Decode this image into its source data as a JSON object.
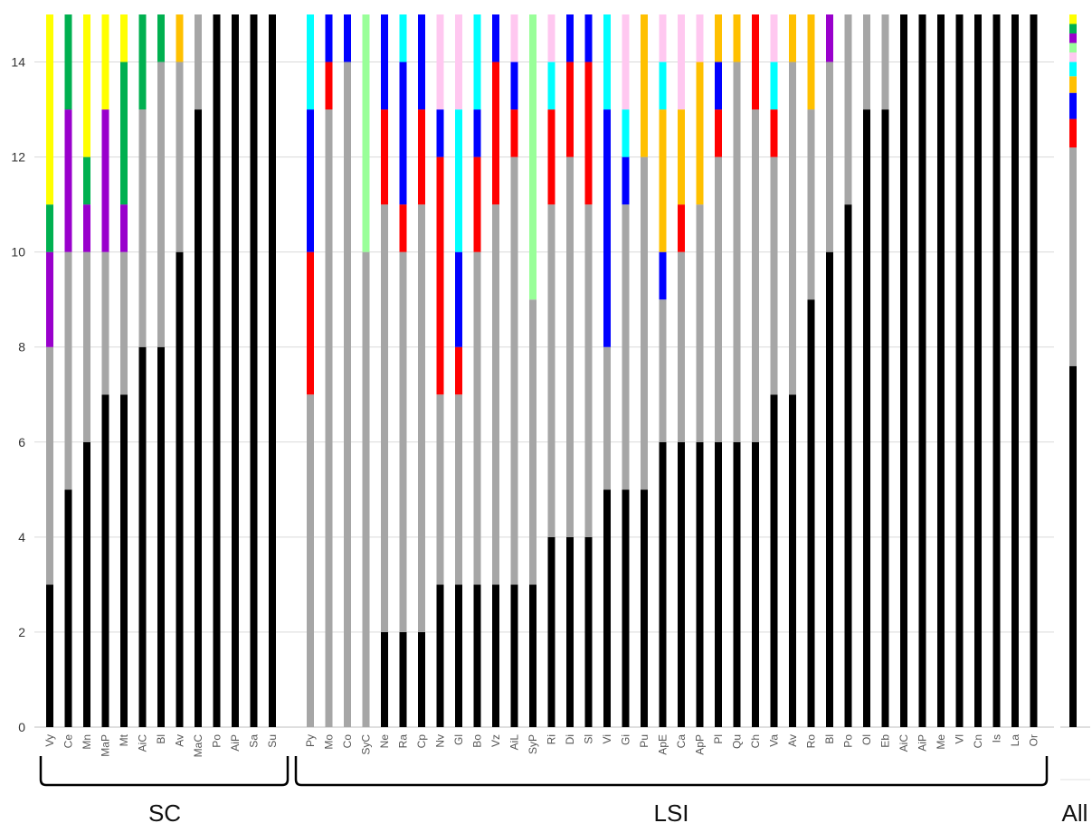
{
  "chart_data": {
    "type": "bar",
    "stacked": true,
    "grid": true,
    "ylim": [
      0,
      15
    ],
    "y_ticks": [
      "0",
      "2",
      "4",
      "6",
      "8",
      "10",
      "12",
      "14"
    ],
    "colors": {
      "black": "#000000",
      "gray": "#a6a6a6",
      "red": "#ff0000",
      "blue": "#0000ff",
      "cyan": "#00ffff",
      "pink": "#ffc8f0",
      "orange": "#ffc000",
      "purple": "#9900cc",
      "green": "#00b050",
      "yellow": "#ffff00",
      "lightgreen": "#99ff99"
    },
    "groups": [
      {
        "label": "SC",
        "bars": [
          {
            "label": "Vy",
            "segments": [
              [
                "black",
                3
              ],
              [
                "gray",
                5
              ],
              [
                "purple",
                2
              ],
              [
                "green",
                1
              ],
              [
                "yellow",
                4
              ]
            ]
          },
          {
            "label": "Ce",
            "segments": [
              [
                "black",
                5
              ],
              [
                "gray",
                5
              ],
              [
                "purple",
                3
              ],
              [
                "green",
                2
              ]
            ]
          },
          {
            "label": "Mn",
            "segments": [
              [
                "black",
                6
              ],
              [
                "gray",
                4
              ],
              [
                "purple",
                1
              ],
              [
                "green",
                1
              ],
              [
                "yellow",
                3
              ]
            ]
          },
          {
            "label": "MaP",
            "segments": [
              [
                "black",
                7
              ],
              [
                "gray",
                3
              ],
              [
                "purple",
                3
              ],
              [
                "yellow",
                2
              ]
            ]
          },
          {
            "label": "Mt",
            "segments": [
              [
                "black",
                7
              ],
              [
                "gray",
                3
              ],
              [
                "purple",
                1
              ],
              [
                "green",
                3
              ],
              [
                "yellow",
                1
              ]
            ]
          },
          {
            "label": "AiC",
            "segments": [
              [
                "black",
                8
              ],
              [
                "gray",
                5
              ],
              [
                "green",
                2
              ]
            ]
          },
          {
            "label": "Bl",
            "segments": [
              [
                "black",
                8
              ],
              [
                "gray",
                6
              ],
              [
                "green",
                1
              ]
            ]
          },
          {
            "label": "Av",
            "segments": [
              [
                "black",
                10
              ],
              [
                "gray",
                4
              ],
              [
                "orange",
                1
              ]
            ]
          },
          {
            "label": "MaC",
            "segments": [
              [
                "black",
                13
              ],
              [
                "gray",
                2
              ]
            ]
          },
          {
            "label": "Po",
            "segments": [
              [
                "black",
                15
              ]
            ]
          },
          {
            "label": "AiP",
            "segments": [
              [
                "black",
                15
              ]
            ]
          },
          {
            "label": "Sa",
            "segments": [
              [
                "black",
                15
              ]
            ]
          },
          {
            "label": "Su",
            "segments": [
              [
                "black",
                15
              ]
            ]
          }
        ]
      },
      {
        "label": "LSI",
        "bars": [
          {
            "label": "Py",
            "segments": [
              [
                "gray",
                7
              ],
              [
                "red",
                3
              ],
              [
                "blue",
                3
              ],
              [
                "cyan",
                2
              ]
            ]
          },
          {
            "label": "Mo",
            "segments": [
              [
                "gray",
                13
              ],
              [
                "red",
                1
              ],
              [
                "blue",
                1
              ]
            ]
          },
          {
            "label": "Co",
            "segments": [
              [
                "gray",
                14
              ],
              [
                "blue",
                1
              ]
            ]
          },
          {
            "label": "SyC",
            "segments": [
              [
                "gray",
                10
              ],
              [
                "lightgreen",
                5
              ]
            ]
          },
          {
            "label": "Ne",
            "segments": [
              [
                "black",
                2
              ],
              [
                "gray",
                9
              ],
              [
                "red",
                2
              ],
              [
                "blue",
                2
              ]
            ]
          },
          {
            "label": "Ra",
            "segments": [
              [
                "black",
                2
              ],
              [
                "gray",
                8
              ],
              [
                "red",
                1
              ],
              [
                "blue",
                3
              ],
              [
                "cyan",
                1
              ]
            ]
          },
          {
            "label": "Cp",
            "segments": [
              [
                "black",
                2
              ],
              [
                "gray",
                9
              ],
              [
                "red",
                2
              ],
              [
                "blue",
                2
              ]
            ]
          },
          {
            "label": "Nv",
            "segments": [
              [
                "black",
                3
              ],
              [
                "gray",
                4
              ],
              [
                "red",
                5
              ],
              [
                "blue",
                1
              ],
              [
                "pink",
                2
              ]
            ]
          },
          {
            "label": "Gl",
            "segments": [
              [
                "black",
                3
              ],
              [
                "gray",
                4
              ],
              [
                "red",
                1
              ],
              [
                "blue",
                2
              ],
              [
                "cyan",
                3
              ],
              [
                "pink",
                2
              ]
            ]
          },
          {
            "label": "Bo",
            "segments": [
              [
                "black",
                3
              ],
              [
                "gray",
                7
              ],
              [
                "red",
                2
              ],
              [
                "blue",
                1
              ],
              [
                "cyan",
                2
              ]
            ]
          },
          {
            "label": "Vz",
            "segments": [
              [
                "black",
                3
              ],
              [
                "gray",
                8
              ],
              [
                "red",
                3
              ],
              [
                "blue",
                1
              ]
            ]
          },
          {
            "label": "AiL",
            "segments": [
              [
                "black",
                3
              ],
              [
                "gray",
                9
              ],
              [
                "red",
                1
              ],
              [
                "blue",
                1
              ],
              [
                "pink",
                1
              ]
            ]
          },
          {
            "label": "SyP",
            "segments": [
              [
                "black",
                3
              ],
              [
                "gray",
                6
              ],
              [
                "lightgreen",
                6
              ]
            ]
          },
          {
            "label": "Ri",
            "segments": [
              [
                "black",
                4
              ],
              [
                "gray",
                7
              ],
              [
                "red",
                2
              ],
              [
                "cyan",
                1
              ],
              [
                "pink",
                1
              ]
            ]
          },
          {
            "label": "Di",
            "segments": [
              [
                "black",
                4
              ],
              [
                "gray",
                8
              ],
              [
                "red",
                2
              ],
              [
                "blue",
                1
              ]
            ]
          },
          {
            "label": "Sl",
            "segments": [
              [
                "black",
                4
              ],
              [
                "gray",
                7
              ],
              [
                "red",
                3
              ],
              [
                "blue",
                1
              ]
            ]
          },
          {
            "label": "Vi",
            "segments": [
              [
                "black",
                5
              ],
              [
                "gray",
                3
              ],
              [
                "blue",
                5
              ],
              [
                "cyan",
                2
              ]
            ]
          },
          {
            "label": "Gi",
            "segments": [
              [
                "black",
                5
              ],
              [
                "gray",
                6
              ],
              [
                "blue",
                1
              ],
              [
                "cyan",
                1
              ],
              [
                "pink",
                2
              ]
            ]
          },
          {
            "label": "Pu",
            "segments": [
              [
                "black",
                5
              ],
              [
                "gray",
                7
              ],
              [
                "orange",
                3
              ]
            ]
          },
          {
            "label": "ApE",
            "segments": [
              [
                "black",
                6
              ],
              [
                "gray",
                3
              ],
              [
                "blue",
                1
              ],
              [
                "orange",
                3
              ],
              [
                "cyan",
                1
              ],
              [
                "pink",
                1
              ]
            ]
          },
          {
            "label": "Ca",
            "segments": [
              [
                "black",
                6
              ],
              [
                "gray",
                4
              ],
              [
                "red",
                1
              ],
              [
                "orange",
                2
              ],
              [
                "pink",
                2
              ]
            ]
          },
          {
            "label": "ApP",
            "segments": [
              [
                "black",
                6
              ],
              [
                "gray",
                5
              ],
              [
                "orange",
                3
              ],
              [
                "pink",
                1
              ]
            ]
          },
          {
            "label": "Pl",
            "segments": [
              [
                "black",
                6
              ],
              [
                "gray",
                6
              ],
              [
                "red",
                1
              ],
              [
                "blue",
                1
              ],
              [
                "orange",
                1
              ]
            ]
          },
          {
            "label": "Qu",
            "segments": [
              [
                "black",
                6
              ],
              [
                "gray",
                8
              ],
              [
                "orange",
                1
              ]
            ]
          },
          {
            "label": "Ch",
            "segments": [
              [
                "black",
                6
              ],
              [
                "gray",
                7
              ],
              [
                "red",
                2
              ]
            ]
          },
          {
            "label": "Va",
            "segments": [
              [
                "black",
                7
              ],
              [
                "gray",
                5
              ],
              [
                "red",
                1
              ],
              [
                "cyan",
                1
              ],
              [
                "pink",
                1
              ]
            ]
          },
          {
            "label": "Av",
            "segments": [
              [
                "black",
                7
              ],
              [
                "gray",
                7
              ],
              [
                "orange",
                1
              ]
            ]
          },
          {
            "label": "Ro",
            "segments": [
              [
                "black",
                9
              ],
              [
                "gray",
                4
              ],
              [
                "orange",
                2
              ]
            ]
          },
          {
            "label": "Bl",
            "segments": [
              [
                "black",
                10
              ],
              [
                "gray",
                4
              ],
              [
                "purple",
                1
              ]
            ]
          },
          {
            "label": "Po",
            "segments": [
              [
                "black",
                11
              ],
              [
                "gray",
                4
              ]
            ]
          },
          {
            "label": "Ol",
            "segments": [
              [
                "black",
                13
              ],
              [
                "gray",
                2
              ]
            ]
          },
          {
            "label": "Eb",
            "segments": [
              [
                "black",
                13
              ],
              [
                "gray",
                2
              ]
            ]
          },
          {
            "label": "AiC",
            "segments": [
              [
                "black",
                15
              ]
            ]
          },
          {
            "label": "AiP",
            "segments": [
              [
                "black",
                15
              ]
            ]
          },
          {
            "label": "Me",
            "segments": [
              [
                "black",
                15
              ]
            ]
          },
          {
            "label": "Vl",
            "segments": [
              [
                "black",
                15
              ]
            ]
          },
          {
            "label": "Cn",
            "segments": [
              [
                "black",
                15
              ]
            ]
          },
          {
            "label": "Is",
            "segments": [
              [
                "black",
                15
              ]
            ]
          },
          {
            "label": "La",
            "segments": [
              [
                "black",
                15
              ]
            ]
          },
          {
            "label": "Or",
            "segments": [
              [
                "black",
                15
              ]
            ]
          }
        ]
      },
      {
        "label": "All",
        "bars": [
          {
            "label": "",
            "segments": [
              [
                "black",
                7.6
              ],
              [
                "gray",
                4.6
              ],
              [
                "red",
                0.6
              ],
              [
                "blue",
                0.55
              ],
              [
                "orange",
                0.35
              ],
              [
                "cyan",
                0.3
              ],
              [
                "pink",
                0.2
              ],
              [
                "lightgreen",
                0.2
              ],
              [
                "purple",
                0.2
              ],
              [
                "green",
                0.2
              ],
              [
                "yellow",
                0.2
              ]
            ]
          }
        ]
      }
    ]
  }
}
